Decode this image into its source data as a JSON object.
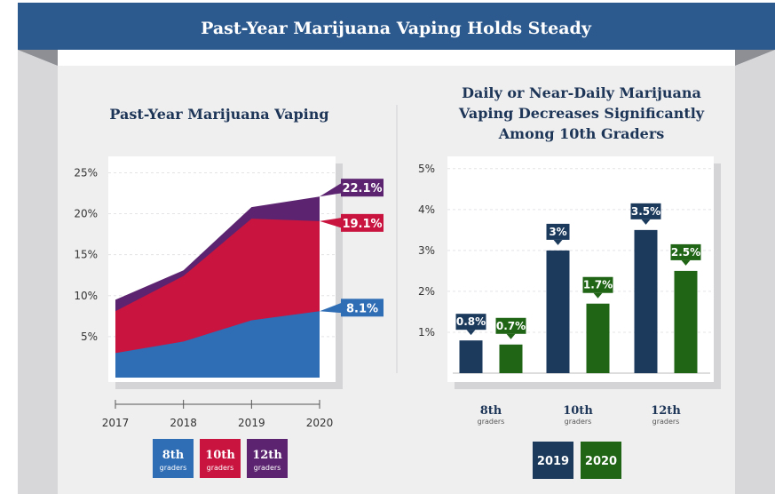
{
  "banner": {
    "title": "Past-Year Marijuana Vaping Holds Steady"
  },
  "colors": {
    "banner": "#2d5a8e",
    "navy": "#1d3557",
    "grade8": "#2f6db5",
    "grade10": "#c8143f",
    "grade12": "#5c2470",
    "y2019": "#1b3a5c",
    "y2020": "#1f6515",
    "panel_bg": "#efeff0",
    "side_wall": "#d7d7d9"
  },
  "chart_data": [
    {
      "type": "area",
      "title": "Past-Year Marijuana Vaping",
      "stacked": true,
      "x": [
        "2017",
        "2018",
        "2019",
        "2020"
      ],
      "series": [
        {
          "name": "8th",
          "sublabel": "graders",
          "values": [
            3.0,
            4.4,
            7.0,
            8.1
          ]
        },
        {
          "name": "10th",
          "sublabel": "graders",
          "values": [
            8.1,
            12.4,
            19.4,
            19.1
          ]
        },
        {
          "name": "12th",
          "sublabel": "graders",
          "values": [
            9.5,
            13.1,
            20.8,
            22.1
          ]
        }
      ],
      "end_labels": [
        "8.1%",
        "19.1%",
        "22.1%"
      ],
      "y_ticks": [
        "5%",
        "10%",
        "15%",
        "20%",
        "25%"
      ],
      "ylim": [
        0,
        27
      ],
      "legend_position": "bottom-center"
    },
    {
      "type": "bar",
      "title_lines": [
        "Daily or Near-Daily Marijuana",
        "Vaping Decreases Significantly",
        "Among 10th Graders"
      ],
      "categories": [
        {
          "name": "8th",
          "sublabel": "graders"
        },
        {
          "name": "10th",
          "sublabel": "graders"
        },
        {
          "name": "12th",
          "sublabel": "graders"
        }
      ],
      "series": [
        {
          "name": "2019",
          "values": [
            0.8,
            3.0,
            3.5
          ],
          "labels": [
            "0.8%",
            "3%",
            "3.5%"
          ]
        },
        {
          "name": "2020",
          "values": [
            0.7,
            1.7,
            2.5
          ],
          "labels": [
            "0.7%",
            "1.7%",
            "2.5%"
          ]
        }
      ],
      "y_ticks": [
        "1%",
        "2%",
        "3%",
        "4%",
        "5%"
      ],
      "ylim": [
        0,
        5.3
      ],
      "legend_position": "bottom-center"
    }
  ]
}
